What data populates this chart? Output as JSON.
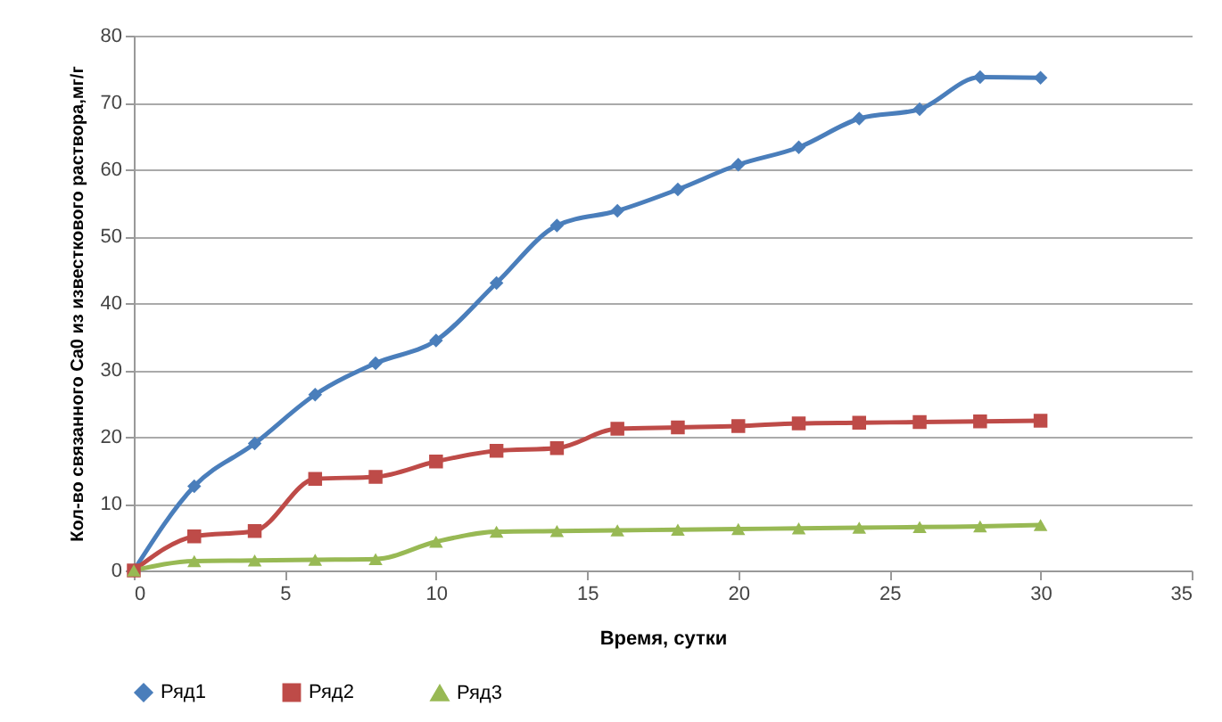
{
  "chart_data": {
    "type": "line",
    "xlabel": "Время, сутки",
    "ylabel": "Кол-во связанного Ca0 из известкового раствора,мг/г",
    "x": [
      0,
      2,
      4,
      6,
      8,
      10,
      12,
      14,
      16,
      18,
      20,
      22,
      24,
      26,
      28,
      30
    ],
    "series": [
      {
        "name": "Ряд1",
        "color": "#4a7ebb",
        "marker": "diamond",
        "values": [
          0,
          12.6,
          19,
          26.3,
          31,
          34.4,
          43,
          51.6,
          53.8,
          57,
          60.7,
          63.3,
          67.6,
          69,
          73.8,
          73.7
        ]
      },
      {
        "name": "Ряд2",
        "color": "#be4b48",
        "marker": "square",
        "values": [
          0,
          5.1,
          5.9,
          13.7,
          14,
          16.3,
          17.9,
          18.3,
          21.2,
          21.4,
          21.6,
          22,
          22.1,
          22.2,
          22.3,
          22.4
        ]
      },
      {
        "name": "Ряд3",
        "color": "#98b954",
        "marker": "triangle",
        "values": [
          0,
          1.4,
          1.5,
          1.6,
          1.7,
          4.3,
          5.8,
          5.9,
          6,
          6.1,
          6.2,
          6.3,
          6.4,
          6.5,
          6.6,
          6.8
        ]
      }
    ],
    "xlim": [
      0,
      35
    ],
    "xticks": [
      0,
      5,
      10,
      15,
      20,
      25,
      30,
      35
    ],
    "ylim": [
      0,
      80
    ],
    "yticks": [
      0,
      10,
      20,
      30,
      40,
      50,
      60,
      70,
      80
    ],
    "grid": "y",
    "legend": "bottom",
    "line_style": "solid"
  }
}
